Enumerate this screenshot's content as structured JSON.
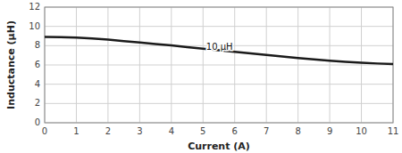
{
  "chart_data": {
    "type": "line",
    "title": "",
    "xlabel": "Current (A)",
    "ylabel": "Inductance (μH)",
    "x": [
      0,
      0.5,
      1.0,
      1.5,
      2.0,
      2.5,
      3.0,
      3.5,
      4.0,
      4.5,
      5.0,
      5.5,
      6.0,
      6.5,
      7.0,
      7.5,
      8.0,
      8.5,
      9.0,
      9.5,
      10.0,
      10.5,
      11.0
    ],
    "values": [
      8.9,
      8.88,
      8.83,
      8.75,
      8.62,
      8.48,
      8.33,
      8.18,
      8.02,
      7.85,
      7.68,
      7.52,
      7.36,
      7.2,
      7.04,
      6.88,
      6.72,
      6.58,
      6.44,
      6.32,
      6.22,
      6.15,
      6.1
    ],
    "color": "#1a1a1a",
    "xlim": [
      0,
      11
    ],
    "ylim": [
      0,
      12
    ],
    "xticks": [
      0,
      1,
      2,
      3,
      4,
      5,
      6,
      7,
      8,
      9,
      10,
      11
    ],
    "yticks": [
      0,
      2,
      4,
      6,
      8,
      10,
      12
    ],
    "grid": true,
    "annotations": [
      {
        "text": "10 μH",
        "x": 5.1,
        "y": 7.85
      }
    ]
  }
}
